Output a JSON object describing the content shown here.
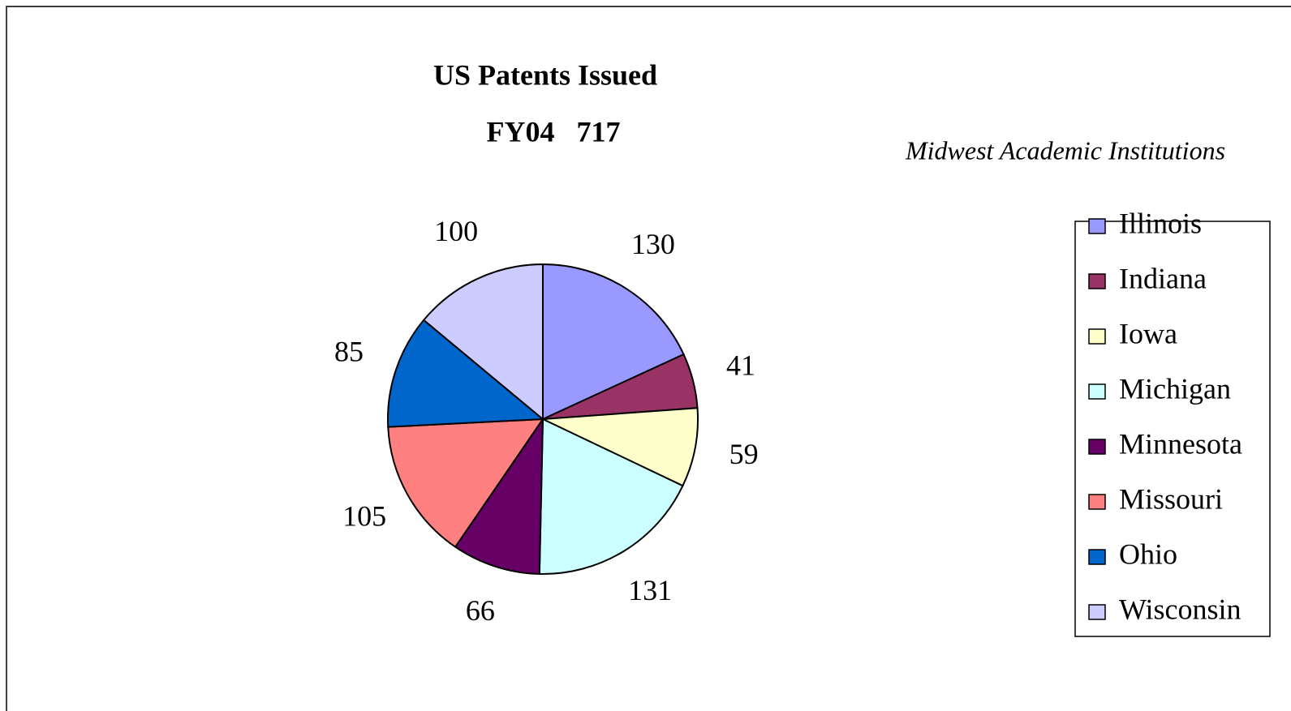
{
  "chart_data": {
    "type": "pie",
    "title": "US Patents Issued",
    "subtitle": "FY04   717",
    "annotation": "Midwest Academic Institutions",
    "categories": [
      "Illinois",
      "Indiana",
      "Iowa",
      "Michigan",
      "Minnesota",
      "Missouri",
      "Ohio",
      "Wisconsin"
    ],
    "values": [
      130,
      41,
      59,
      131,
      66,
      105,
      85,
      100
    ],
    "colors": [
      "#9999FF",
      "#993366",
      "#FFFFCC",
      "#CCFFFF",
      "#660066",
      "#FF8080",
      "#0066CC",
      "#CCCCFF"
    ],
    "legend": "right"
  }
}
